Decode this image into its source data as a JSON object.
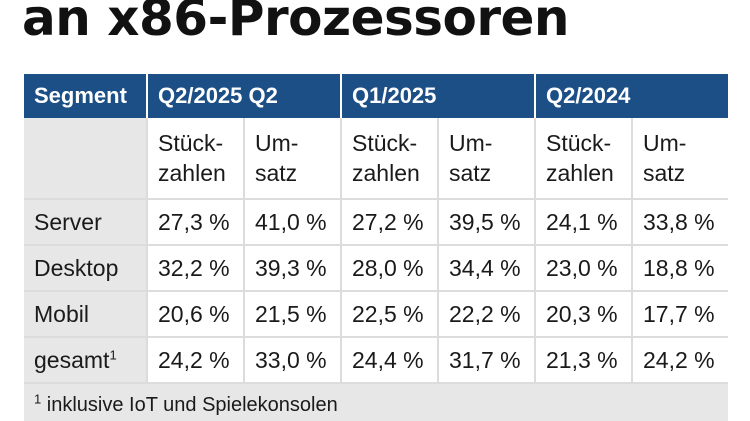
{
  "headline": "an x86-Prozessoren",
  "table": {
    "headers": [
      "Segment",
      "Q2/2025 Q2",
      "Q1/2025",
      "Q2/2024"
    ],
    "subheaders": [
      {
        "line1": "Stück-",
        "line2": "zahlen"
      },
      {
        "line1": "Um-",
        "line2": "satz"
      },
      {
        "line1": "Stück-",
        "line2": "zahlen"
      },
      {
        "line1": "Um-",
        "line2": "satz"
      },
      {
        "line1": "Stück-",
        "line2": "zahlen"
      },
      {
        "line1": "Um-",
        "line2": "satz"
      }
    ],
    "rows": [
      {
        "label": "Server",
        "note": "",
        "values": [
          "27,3 %",
          "41,0 %",
          "27,2 %",
          "39,5 %",
          "24,1 %",
          "33,8 %"
        ]
      },
      {
        "label": "Desktop",
        "note": "",
        "values": [
          "32,2 %",
          "39,3 %",
          "28,0 %",
          "34,4 %",
          "23,0 %",
          "18,8 %"
        ]
      },
      {
        "label": "Mobil",
        "note": "",
        "values": [
          "20,6 %",
          "21,5 %",
          "22,5 %",
          "22,2 %",
          "20,3 %",
          "17,7 %"
        ]
      },
      {
        "label": "gesamt",
        "note": "1",
        "values": [
          "24,2 %",
          "33,0 %",
          "24,4 %",
          "31,7 %",
          "21,3 %",
          "24,2 %"
        ]
      }
    ],
    "footnote": {
      "marker": "1",
      "text": " inklusive IoT und Spielekonsolen"
    }
  },
  "colors": {
    "header_bg": "#1c4f86",
    "shade_bg": "#e7e7e7",
    "grid": "#dcdcdc"
  }
}
